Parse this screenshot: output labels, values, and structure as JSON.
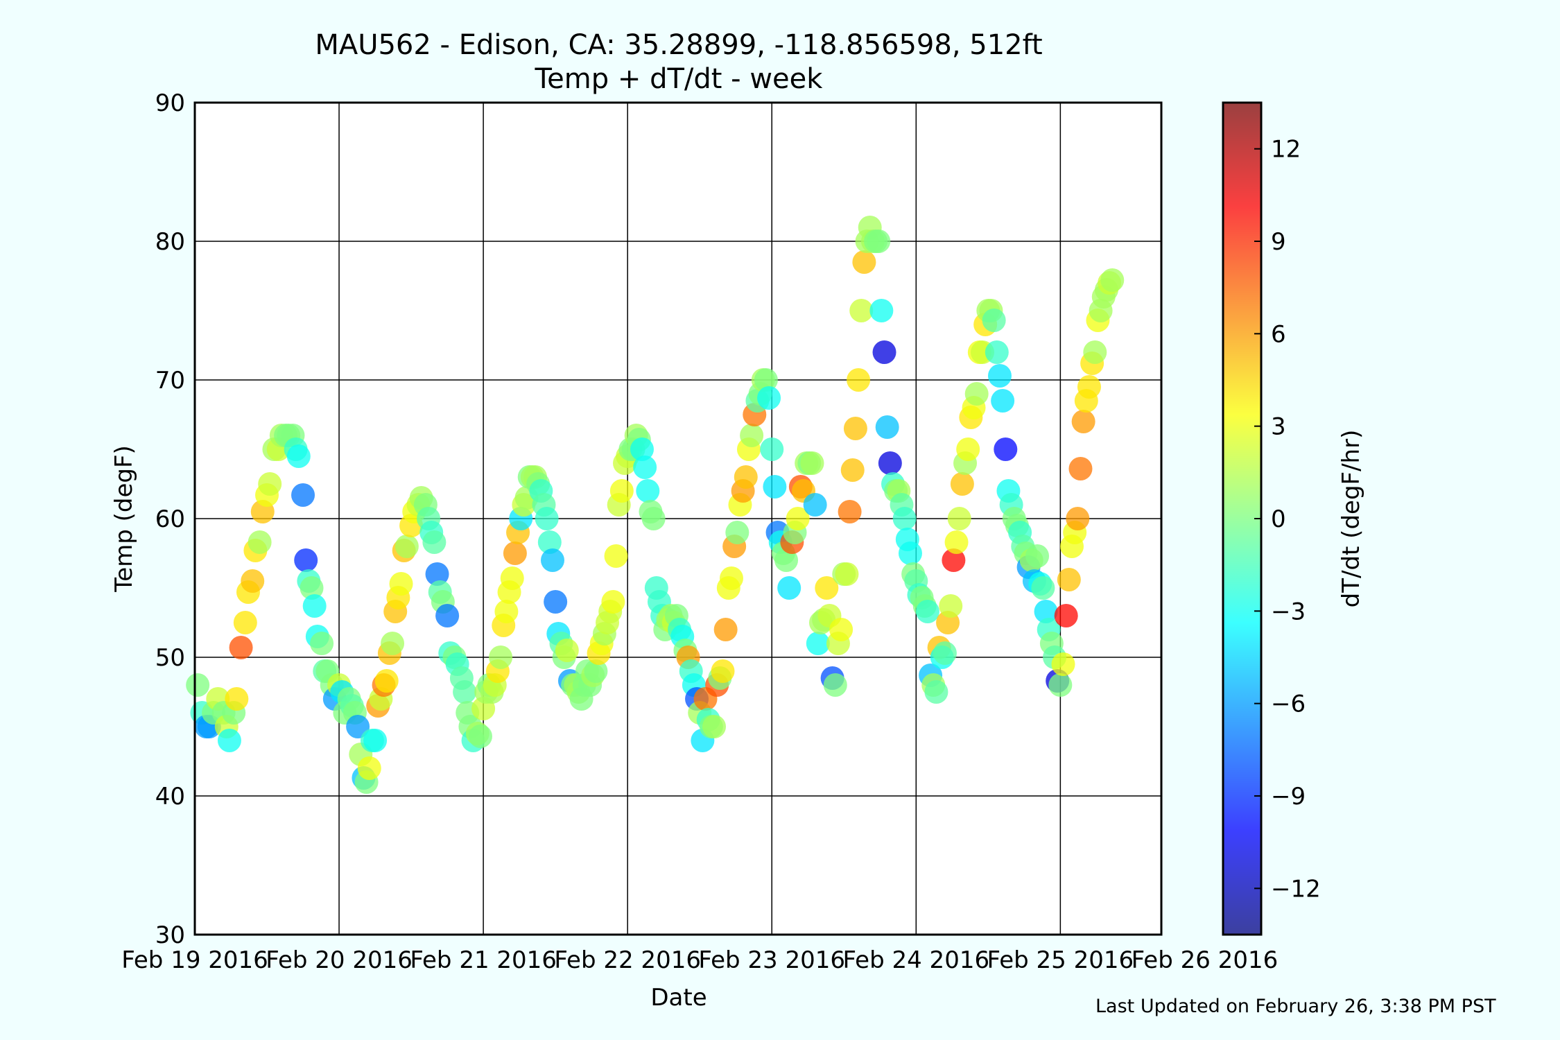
{
  "footer": {
    "last_updated": "Last Updated on February 26, 3:38 PM PST"
  },
  "chart_data": {
    "type": "scatter",
    "title": "MAU562 - Edison, CA: 35.28899, -118.856598, 512ft",
    "subtitle": "Temp + dT/dt - week",
    "xlabel": "Date",
    "ylabel": "Temp (degF)",
    "colorbar_label": "dT/dt (degF/hr)",
    "ylim": [
      30,
      90
    ],
    "yticks": [
      30,
      40,
      50,
      60,
      70,
      80,
      90
    ],
    "xlim": [
      0,
      6.7
    ],
    "xticks": [
      {
        "x": 0,
        "label": "Feb 19 2016"
      },
      {
        "x": 1,
        "label": "Feb 20 2016"
      },
      {
        "x": 2,
        "label": "Feb 21 2016"
      },
      {
        "x": 3,
        "label": "Feb 22 2016"
      },
      {
        "x": 4,
        "label": "Feb 23 2016"
      },
      {
        "x": 5,
        "label": "Feb 24 2016"
      },
      {
        "x": 6,
        "label": "Feb 25 2016"
      },
      {
        "x": 7,
        "label": "Feb 26 2016"
      }
    ],
    "colorbar_range": [
      -13.5,
      13.5
    ],
    "colorbar_ticks": [
      "−12",
      "−9",
      "−6",
      "−3",
      "0",
      "3",
      "6",
      "9",
      "12"
    ],
    "colormap": [
      "#00007f",
      "#0000ff",
      "#007fff",
      "#00ffff",
      "#7fff7f",
      "#ffff00",
      "#ff7f00",
      "#ff0000",
      "#7f0000"
    ],
    "grid": true,
    "points": [
      [
        0.02,
        48,
        0
      ],
      [
        0.05,
        46,
        -2
      ],
      [
        0.08,
        45,
        -6
      ],
      [
        0.1,
        45,
        -6
      ],
      [
        0.13,
        46,
        0
      ],
      [
        0.16,
        47,
        2
      ],
      [
        0.2,
        46,
        0
      ],
      [
        0.22,
        45,
        2
      ],
      [
        0.24,
        44,
        -3
      ],
      [
        0.27,
        46,
        0
      ],
      [
        0.29,
        47,
        4
      ],
      [
        0.32,
        50.7,
        8
      ],
      [
        0.35,
        52.5,
        4
      ],
      [
        0.37,
        54.7,
        4
      ],
      [
        0.4,
        55.5,
        5
      ],
      [
        0.42,
        57.7,
        4
      ],
      [
        0.45,
        58.3,
        1
      ],
      [
        0.47,
        60.5,
        5
      ],
      [
        0.5,
        61.7,
        3
      ],
      [
        0.52,
        62.5,
        2
      ],
      [
        0.55,
        65,
        1
      ],
      [
        0.58,
        65,
        2
      ],
      [
        0.6,
        66,
        1
      ],
      [
        0.63,
        66,
        0
      ],
      [
        0.65,
        66,
        0
      ],
      [
        0.68,
        66,
        0
      ],
      [
        0.7,
        65,
        -2
      ],
      [
        0.72,
        64.5,
        -3
      ],
      [
        0.75,
        61.7,
        -7
      ],
      [
        0.77,
        57,
        -9
      ],
      [
        0.79,
        55.5,
        -2
      ],
      [
        0.81,
        55,
        0
      ],
      [
        0.83,
        53.7,
        -3
      ],
      [
        0.85,
        51.5,
        -3
      ],
      [
        0.88,
        51,
        0
      ],
      [
        0.9,
        49,
        -1
      ],
      [
        0.92,
        49,
        0
      ],
      [
        0.95,
        48,
        0
      ],
      [
        0.97,
        47,
        -6
      ],
      [
        1.0,
        48,
        2
      ],
      [
        1.02,
        47.5,
        -4
      ],
      [
        1.04,
        46,
        0
      ],
      [
        1.07,
        47,
        0
      ],
      [
        1.09,
        46.5,
        -1
      ],
      [
        1.11,
        46,
        0
      ],
      [
        1.13,
        45,
        -6
      ],
      [
        1.15,
        43,
        1
      ],
      [
        1.17,
        41.3,
        -5
      ],
      [
        1.19,
        41,
        0
      ],
      [
        1.21,
        42,
        3
      ],
      [
        1.23,
        44,
        -2
      ],
      [
        1.25,
        44,
        -3
      ],
      [
        1.27,
        46.5,
        6
      ],
      [
        1.29,
        47,
        2
      ],
      [
        1.31,
        48,
        7
      ],
      [
        1.33,
        48.3,
        4
      ],
      [
        1.35,
        50.3,
        5
      ],
      [
        1.37,
        51,
        1
      ],
      [
        1.39,
        53.3,
        5
      ],
      [
        1.41,
        54.3,
        4
      ],
      [
        1.43,
        55.3,
        3
      ],
      [
        1.45,
        57.7,
        5
      ],
      [
        1.47,
        58,
        1
      ],
      [
        1.5,
        59.5,
        4
      ],
      [
        1.52,
        60.5,
        3
      ],
      [
        1.55,
        61,
        2
      ],
      [
        1.57,
        61.5,
        1
      ],
      [
        1.6,
        61,
        0
      ],
      [
        1.62,
        60,
        -1
      ],
      [
        1.64,
        59,
        -2
      ],
      [
        1.66,
        58.3,
        -1
      ],
      [
        1.68,
        56,
        -7
      ],
      [
        1.7,
        54.7,
        -1
      ],
      [
        1.72,
        54,
        0
      ],
      [
        1.75,
        53,
        -7
      ],
      [
        1.77,
        50.3,
        -2
      ],
      [
        1.8,
        50,
        0
      ],
      [
        1.82,
        49.5,
        -2
      ],
      [
        1.85,
        48.5,
        -1
      ],
      [
        1.87,
        47.5,
        -1
      ],
      [
        1.89,
        46,
        0
      ],
      [
        1.91,
        45,
        0
      ],
      [
        1.93,
        44,
        -2
      ],
      [
        1.96,
        44.5,
        1
      ],
      [
        1.98,
        44.3,
        0
      ],
      [
        2.0,
        46.3,
        2
      ],
      [
        2.02,
        47.5,
        1
      ],
      [
        2.04,
        48,
        0
      ],
      [
        2.06,
        47.5,
        1
      ],
      [
        2.08,
        48,
        2
      ],
      [
        2.1,
        49,
        4
      ],
      [
        2.12,
        50,
        1
      ],
      [
        2.14,
        52.3,
        4
      ],
      [
        2.16,
        53.3,
        3
      ],
      [
        2.18,
        54.7,
        3
      ],
      [
        2.2,
        55.7,
        3
      ],
      [
        2.22,
        57.5,
        6
      ],
      [
        2.24,
        59,
        5
      ],
      [
        2.26,
        60,
        -4
      ],
      [
        2.28,
        61,
        2
      ],
      [
        2.3,
        61.5,
        1
      ],
      [
        2.32,
        63,
        0
      ],
      [
        2.34,
        63,
        1
      ],
      [
        2.36,
        63,
        1
      ],
      [
        2.38,
        62.5,
        0
      ],
      [
        2.4,
        62,
        -2
      ],
      [
        2.42,
        61,
        -1
      ],
      [
        2.44,
        60,
        -2
      ],
      [
        2.46,
        58.3,
        -2
      ],
      [
        2.48,
        57,
        -5
      ],
      [
        2.5,
        54,
        -7
      ],
      [
        2.52,
        51.7,
        -4
      ],
      [
        2.54,
        51,
        -1
      ],
      [
        2.56,
        50,
        0
      ],
      [
        2.58,
        50.5,
        2
      ],
      [
        2.6,
        48.3,
        -6
      ],
      [
        2.62,
        48,
        0
      ],
      [
        2.64,
        48,
        1
      ],
      [
        2.66,
        47.5,
        1
      ],
      [
        2.68,
        47,
        0
      ],
      [
        2.7,
        48,
        0
      ],
      [
        2.72,
        49,
        0
      ],
      [
        2.74,
        48,
        0
      ],
      [
        2.76,
        48.7,
        1
      ],
      [
        2.78,
        49,
        0
      ],
      [
        2.8,
        50.3,
        4
      ],
      [
        2.82,
        51,
        3
      ],
      [
        2.84,
        51.7,
        1
      ],
      [
        2.86,
        52.5,
        2
      ],
      [
        2.88,
        53.3,
        2
      ],
      [
        2.9,
        54,
        3
      ],
      [
        2.92,
        57.3,
        3
      ],
      [
        2.94,
        61,
        2
      ],
      [
        2.96,
        62,
        3
      ],
      [
        2.98,
        64,
        2
      ],
      [
        3.0,
        64.5,
        2
      ],
      [
        3.02,
        65,
        0
      ],
      [
        3.04,
        65,
        0
      ],
      [
        3.06,
        66,
        1
      ],
      [
        3.08,
        65.7,
        0
      ],
      [
        3.1,
        65,
        -3
      ],
      [
        3.12,
        63.7,
        -3
      ],
      [
        3.14,
        62,
        -3
      ],
      [
        3.16,
        60.5,
        0
      ],
      [
        3.18,
        60,
        0
      ],
      [
        3.2,
        55,
        -2
      ],
      [
        3.22,
        54,
        -2
      ],
      [
        3.24,
        53,
        -2
      ],
      [
        3.26,
        52,
        0
      ],
      [
        3.28,
        52.7,
        1
      ],
      [
        3.3,
        53,
        1
      ],
      [
        3.32,
        52.5,
        2
      ],
      [
        3.34,
        53,
        0
      ],
      [
        3.36,
        52,
        -2
      ],
      [
        3.38,
        51.5,
        -3
      ],
      [
        3.4,
        50.5,
        0
      ],
      [
        3.42,
        50,
        6
      ],
      [
        3.44,
        49,
        -2
      ],
      [
        3.46,
        48,
        -3
      ],
      [
        3.48,
        47,
        -8
      ],
      [
        3.5,
        46,
        1
      ],
      [
        3.52,
        44,
        -4
      ],
      [
        3.54,
        47,
        7
      ],
      [
        3.56,
        45.5,
        -2
      ],
      [
        3.58,
        45,
        0
      ],
      [
        3.6,
        45,
        1
      ],
      [
        3.62,
        48,
        8
      ],
      [
        3.64,
        48.5,
        0
      ],
      [
        3.66,
        49,
        4
      ],
      [
        3.68,
        52,
        6
      ],
      [
        3.7,
        55,
        3
      ],
      [
        3.72,
        55.7,
        3
      ],
      [
        3.74,
        58,
        6
      ],
      [
        3.76,
        59,
        0
      ],
      [
        3.78,
        61,
        3
      ],
      [
        3.8,
        62,
        6
      ],
      [
        3.82,
        63,
        5
      ],
      [
        3.84,
        65,
        3
      ],
      [
        3.86,
        66,
        1
      ],
      [
        3.88,
        67.5,
        7
      ],
      [
        3.9,
        68.5,
        -1
      ],
      [
        3.92,
        69,
        0
      ],
      [
        3.94,
        70,
        1
      ],
      [
        3.96,
        70,
        0
      ],
      [
        3.98,
        68.7,
        -3
      ],
      [
        4.0,
        65,
        -2
      ],
      [
        4.02,
        62.3,
        -4
      ],
      [
        4.04,
        59,
        -7
      ],
      [
        4.06,
        58.3,
        -3
      ],
      [
        4.08,
        57.5,
        0
      ],
      [
        4.1,
        57,
        0
      ],
      [
        4.12,
        55,
        -4
      ],
      [
        4.14,
        58.3,
        8
      ],
      [
        4.16,
        59,
        0
      ],
      [
        4.18,
        60,
        3
      ],
      [
        4.2,
        62.3,
        8
      ],
      [
        4.22,
        62,
        5
      ],
      [
        4.24,
        64,
        1
      ],
      [
        4.26,
        64,
        0
      ],
      [
        4.28,
        64,
        1
      ],
      [
        4.3,
        61,
        -5
      ],
      [
        4.32,
        51,
        -3
      ],
      [
        4.34,
        52.5,
        1
      ],
      [
        4.36,
        52.7,
        1
      ],
      [
        4.38,
        55,
        4
      ],
      [
        4.4,
        53,
        2
      ],
      [
        4.42,
        48.5,
        -8
      ],
      [
        4.44,
        48,
        0
      ],
      [
        4.46,
        51,
        2
      ],
      [
        4.48,
        52,
        3
      ],
      [
        4.5,
        56,
        1
      ],
      [
        4.52,
        56,
        2
      ],
      [
        4.54,
        60.5,
        7
      ],
      [
        4.56,
        63.5,
        5
      ],
      [
        4.58,
        66.5,
        5
      ],
      [
        4.6,
        70,
        4
      ],
      [
        4.62,
        75,
        2
      ],
      [
        4.64,
        78.5,
        5
      ],
      [
        4.66,
        80,
        1
      ],
      [
        4.68,
        81,
        1
      ],
      [
        4.7,
        80,
        1
      ],
      [
        4.72,
        80,
        0
      ],
      [
        4.74,
        80,
        0
      ],
      [
        4.76,
        75,
        -3
      ],
      [
        4.78,
        72,
        -11
      ],
      [
        4.8,
        66.6,
        -5
      ],
      [
        4.82,
        64,
        -11
      ],
      [
        4.84,
        62.5,
        -2
      ],
      [
        4.86,
        62,
        0
      ],
      [
        4.88,
        62,
        1
      ],
      [
        4.9,
        61,
        -1
      ],
      [
        4.92,
        60,
        -2
      ],
      [
        4.94,
        58.5,
        -3
      ],
      [
        4.96,
        57.5,
        -3
      ],
      [
        4.98,
        56,
        0
      ],
      [
        5.0,
        55.5,
        -1
      ],
      [
        5.02,
        54.5,
        -2
      ],
      [
        5.04,
        54.3,
        0
      ],
      [
        5.06,
        53.7,
        0
      ],
      [
        5.08,
        53.3,
        -2
      ],
      [
        5.1,
        48.7,
        -5
      ],
      [
        5.12,
        48,
        1
      ],
      [
        5.14,
        47.5,
        -1
      ],
      [
        5.16,
        50.7,
        5
      ],
      [
        5.18,
        50,
        -3
      ],
      [
        5.2,
        50.3,
        -1
      ],
      [
        5.22,
        52.5,
        5
      ],
      [
        5.24,
        53.7,
        2
      ],
      [
        5.26,
        57,
        10
      ],
      [
        5.28,
        58.3,
        3
      ],
      [
        5.3,
        60,
        2
      ],
      [
        5.32,
        62.5,
        5
      ],
      [
        5.34,
        64,
        1
      ],
      [
        5.36,
        65,
        3
      ],
      [
        5.38,
        67.3,
        4
      ],
      [
        5.4,
        68,
        3
      ],
      [
        5.42,
        69,
        1
      ],
      [
        5.44,
        72,
        3
      ],
      [
        5.46,
        72,
        2
      ],
      [
        5.48,
        74,
        4
      ],
      [
        5.5,
        75,
        1
      ],
      [
        5.52,
        75,
        1
      ],
      [
        5.54,
        74.3,
        -1
      ],
      [
        5.56,
        72,
        -2
      ],
      [
        5.58,
        70.3,
        -4
      ],
      [
        5.6,
        68.5,
        -4
      ],
      [
        5.62,
        65,
        -10
      ],
      [
        5.64,
        62,
        -3
      ],
      [
        5.66,
        61,
        -2
      ],
      [
        5.68,
        60,
        0
      ],
      [
        5.7,
        59.5,
        0
      ],
      [
        5.72,
        59,
        -2
      ],
      [
        5.74,
        58,
        -1
      ],
      [
        5.76,
        57.5,
        0
      ],
      [
        5.78,
        56.5,
        -6
      ],
      [
        5.8,
        57,
        1
      ],
      [
        5.82,
        55.5,
        -5
      ],
      [
        5.84,
        57.3,
        0
      ],
      [
        5.86,
        55.3,
        -3
      ],
      [
        5.88,
        55,
        -1
      ],
      [
        5.9,
        53.3,
        -4
      ],
      [
        5.92,
        52,
        -2
      ],
      [
        5.94,
        51,
        0
      ],
      [
        5.96,
        50,
        -1
      ],
      [
        5.98,
        48.3,
        -11
      ],
      [
        6.0,
        48,
        0
      ],
      [
        6.02,
        49.5,
        3
      ],
      [
        6.04,
        53,
        10
      ],
      [
        6.06,
        55.6,
        5
      ],
      [
        6.08,
        58,
        3
      ],
      [
        6.1,
        59,
        3
      ],
      [
        6.12,
        60,
        6
      ],
      [
        6.14,
        63.6,
        7
      ],
      [
        6.16,
        67,
        6
      ],
      [
        6.18,
        68.5,
        4
      ],
      [
        6.2,
        69.5,
        4
      ],
      [
        6.22,
        71.2,
        4
      ],
      [
        6.24,
        72,
        1
      ],
      [
        6.26,
        74.3,
        3
      ],
      [
        6.28,
        75,
        1
      ],
      [
        6.3,
        76,
        1
      ],
      [
        6.32,
        76.5,
        1
      ],
      [
        6.34,
        77,
        2
      ],
      [
        6.36,
        77.2,
        1
      ]
    ]
  }
}
